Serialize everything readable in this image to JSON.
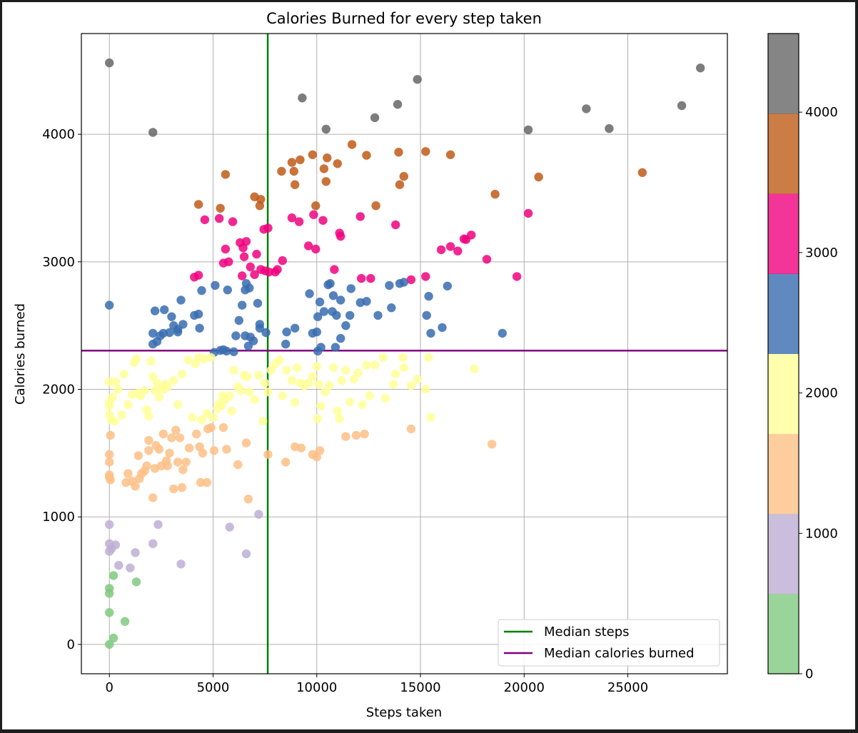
{
  "chart_data": {
    "type": "scatter",
    "title": "Calories Burned for every step taken",
    "xlabel": "Steps taken",
    "ylabel": "Calories burned",
    "xlim": [
      -1350,
      29800
    ],
    "ylim": [
      -230,
      4790
    ],
    "grid": true,
    "x_ticks": [
      0,
      5000,
      10000,
      15000,
      20000,
      25000
    ],
    "y_ticks": [
      0,
      1000,
      2000,
      3000,
      4000
    ],
    "median_steps": 7637,
    "median_calories": 2304,
    "legend": {
      "placement": "lower right",
      "entries": [
        {
          "label": "Median steps",
          "color": "#008000"
        },
        {
          "label": "Median calories burned",
          "color": "#800080"
        }
      ]
    },
    "colorbar": {
      "colormap": "Accent",
      "range": [
        0,
        4560
      ],
      "ticks": [
        0,
        1000,
        2000,
        3000,
        4000
      ],
      "colors": [
        "#7fc97f",
        "#beaed4",
        "#fdc086",
        "#ffff99",
        "#386cb0",
        "#f0027f",
        "#bf5b17",
        "#666666"
      ]
    },
    "points": [
      [
        0,
        4560
      ],
      [
        2100,
        4015
      ],
      [
        9300,
        4285
      ],
      [
        10450,
        4040
      ],
      [
        12800,
        4130
      ],
      [
        13900,
        4235
      ],
      [
        14850,
        4430
      ],
      [
        20200,
        4035
      ],
      [
        23000,
        4200
      ],
      [
        24100,
        4045
      ],
      [
        27600,
        4225
      ],
      [
        28500,
        4520
      ],
      [
        4300,
        3450
      ],
      [
        5600,
        3685
      ],
      [
        7000,
        3510
      ],
      [
        7300,
        3490
      ],
      [
        7250,
        3440
      ],
      [
        8300,
        3710
      ],
      [
        8800,
        3780
      ],
      [
        8900,
        3710
      ],
      [
        8950,
        3605
      ],
      [
        9200,
        3800
      ],
      [
        9800,
        3840
      ],
      [
        9950,
        3440
      ],
      [
        10350,
        3730
      ],
      [
        10450,
        3630
      ],
      [
        10500,
        3815
      ],
      [
        11000,
        3770
      ],
      [
        11700,
        3920
      ],
      [
        12400,
        3835
      ],
      [
        12850,
        3440
      ],
      [
        13950,
        3860
      ],
      [
        14000,
        3605
      ],
      [
        14200,
        3670
      ],
      [
        15250,
        3865
      ],
      [
        16450,
        3840
      ],
      [
        18600,
        3530
      ],
      [
        20700,
        3665
      ],
      [
        25700,
        3700
      ],
      [
        4600,
        3330
      ],
      [
        5350,
        3420
      ],
      [
        5300,
        3340
      ],
      [
        5950,
        3315
      ],
      [
        6300,
        3150
      ],
      [
        6450,
        3110
      ],
      [
        6600,
        3160
      ],
      [
        6500,
        3040
      ],
      [
        6800,
        2960
      ],
      [
        7100,
        3060
      ],
      [
        6400,
        2890
      ],
      [
        7000,
        2900
      ],
      [
        7300,
        2940
      ],
      [
        7500,
        2930
      ],
      [
        7450,
        3255
      ],
      [
        7650,
        3265
      ],
      [
        7700,
        2920
      ],
      [
        8000,
        2920
      ],
      [
        8100,
        2940
      ],
      [
        8350,
        3010
      ],
      [
        8800,
        3345
      ],
      [
        9150,
        3315
      ],
      [
        9600,
        3125
      ],
      [
        9850,
        3370
      ],
      [
        9950,
        3100
      ],
      [
        10300,
        3325
      ],
      [
        10850,
        2940
      ],
      [
        11100,
        3225
      ],
      [
        11150,
        3200
      ],
      [
        12100,
        3355
      ],
      [
        12150,
        2870
      ],
      [
        12600,
        2870
      ],
      [
        13800,
        3290
      ],
      [
        14550,
        2860
      ],
      [
        15250,
        2885
      ],
      [
        16000,
        3095
      ],
      [
        16450,
        3120
      ],
      [
        16800,
        3085
      ],
      [
        17100,
        3180
      ],
      [
        17200,
        3175
      ],
      [
        17450,
        3210
      ],
      [
        18200,
        3020
      ],
      [
        19650,
        2885
      ],
      [
        20200,
        3380
      ],
      [
        4100,
        2880
      ],
      [
        4300,
        2895
      ],
      [
        5500,
        2990
      ],
      [
        5750,
        3000
      ],
      [
        5600,
        3100
      ],
      [
        0,
        2660
      ],
      [
        2100,
        2440
      ],
      [
        2100,
        2355
      ],
      [
        2200,
        2615
      ],
      [
        2300,
        2375
      ],
      [
        2450,
        2420
      ],
      [
        2600,
        2440
      ],
      [
        2650,
        2625
      ],
      [
        2900,
        2445
      ],
      [
        3000,
        2570
      ],
      [
        3100,
        2500
      ],
      [
        3300,
        2450
      ],
      [
        3300,
        2470
      ],
      [
        3450,
        2700
      ],
      [
        3550,
        2510
      ],
      [
        4100,
        2580
      ],
      [
        4300,
        2590
      ],
      [
        4350,
        2480
      ],
      [
        4450,
        2775
      ],
      [
        5050,
        2290
      ],
      [
        5100,
        2815
      ],
      [
        5350,
        2305
      ],
      [
        5500,
        2310
      ],
      [
        5650,
        2300
      ],
      [
        5700,
        2780
      ],
      [
        6000,
        2295
      ],
      [
        6100,
        2420
      ],
      [
        6250,
        2540
      ],
      [
        6400,
        2660
      ],
      [
        6600,
        2830
      ],
      [
        6550,
        2780
      ],
      [
        6550,
        2420
      ],
      [
        6700,
        2340
      ],
      [
        6750,
        2795
      ],
      [
        6800,
        2410
      ],
      [
        6950,
        2380
      ],
      [
        7150,
        2675
      ],
      [
        7250,
        2510
      ],
      [
        7250,
        2480
      ],
      [
        7550,
        2445
      ],
      [
        8500,
        2355
      ],
      [
        8550,
        2450
      ],
      [
        8950,
        2480
      ],
      [
        9650,
        2750
      ],
      [
        9800,
        2440
      ],
      [
        10000,
        2450
      ],
      [
        10050,
        2300
      ],
      [
        10050,
        2570
      ],
      [
        10150,
        2685
      ],
      [
        10200,
        2330
      ],
      [
        10350,
        2610
      ],
      [
        10550,
        2820
      ],
      [
        10650,
        2830
      ],
      [
        10750,
        2610
      ],
      [
        10800,
        2735
      ],
      [
        10900,
        2330
      ],
      [
        10950,
        2580
      ],
      [
        11150,
        2700
      ],
      [
        11150,
        2400
      ],
      [
        11400,
        2500
      ],
      [
        11600,
        2580
      ],
      [
        11650,
        2790
      ],
      [
        12100,
        2680
      ],
      [
        12400,
        2690
      ],
      [
        12950,
        2580
      ],
      [
        13500,
        2815
      ],
      [
        13600,
        2640
      ],
      [
        14000,
        2830
      ],
      [
        14200,
        2840
      ],
      [
        15300,
        2580
      ],
      [
        15400,
        2730
      ],
      [
        15500,
        2440
      ],
      [
        16050,
        2485
      ],
      [
        16300,
        2810
      ],
      [
        18950,
        2440
      ],
      [
        0,
        2060
      ],
      [
        0,
        1900
      ],
      [
        0,
        1870
      ],
      [
        0,
        1800
      ],
      [
        100,
        1760
      ],
      [
        150,
        1940
      ],
      [
        250,
        1750
      ],
      [
        300,
        2060
      ],
      [
        400,
        2000
      ],
      [
        600,
        1800
      ],
      [
        700,
        2120
      ],
      [
        900,
        1880
      ],
      [
        1100,
        1960
      ],
      [
        1200,
        2210
      ],
      [
        1300,
        2240
      ],
      [
        1400,
        1970
      ],
      [
        1500,
        1950
      ],
      [
        1700,
        1990
      ],
      [
        1800,
        1840
      ],
      [
        1900,
        1790
      ],
      [
        2000,
        2220
      ],
      [
        2100,
        2100
      ],
      [
        2200,
        1990
      ],
      [
        2300,
        2050
      ],
      [
        2400,
        1940
      ],
      [
        2500,
        2010
      ],
      [
        2600,
        2000
      ],
      [
        2700,
        2040
      ],
      [
        2800,
        2020
      ],
      [
        3100,
        2070
      ],
      [
        3300,
        1880
      ],
      [
        3500,
        2120
      ],
      [
        3800,
        2230
      ],
      [
        4000,
        1780
      ],
      [
        4150,
        2200
      ],
      [
        4300,
        2250
      ],
      [
        4450,
        1760
      ],
      [
        4550,
        2240
      ],
      [
        4700,
        1810
      ],
      [
        4900,
        2250
      ],
      [
        5000,
        1780
      ],
      [
        5200,
        1850
      ],
      [
        5300,
        1890
      ],
      [
        5400,
        1870
      ],
      [
        5500,
        1700
      ],
      [
        5600,
        1920
      ],
      [
        5800,
        1950
      ],
      [
        5900,
        1830
      ],
      [
        6000,
        2150
      ],
      [
        6200,
        2020
      ],
      [
        6350,
        1990
      ],
      [
        6500,
        2110
      ],
      [
        6650,
        2100
      ],
      [
        6750,
        1980
      ],
      [
        7000,
        1920
      ],
      [
        7200,
        2110
      ],
      [
        7400,
        1750
      ],
      [
        7500,
        2050
      ],
      [
        7650,
        1980
      ],
      [
        7800,
        2150
      ],
      [
        8000,
        2200
      ],
      [
        8200,
        2230
      ],
      [
        8350,
        1950
      ],
      [
        8550,
        2150
      ],
      [
        8800,
        2070
      ],
      [
        8950,
        1900
      ],
      [
        9050,
        2170
      ],
      [
        9200,
        2050
      ],
      [
        9400,
        2030
      ],
      [
        9600,
        2050
      ],
      [
        9800,
        2100
      ],
      [
        10000,
        2180
      ],
      [
        10050,
        1770
      ],
      [
        10100,
        2040
      ],
      [
        10200,
        1870
      ],
      [
        10400,
        1980
      ],
      [
        10600,
        2030
      ],
      [
        10800,
        2170
      ],
      [
        11000,
        1830
      ],
      [
        11100,
        1770
      ],
      [
        11200,
        2070
      ],
      [
        11400,
        2150
      ],
      [
        11600,
        1900
      ],
      [
        11800,
        2080
      ],
      [
        12000,
        2130
      ],
      [
        12200,
        1880
      ],
      [
        12400,
        2190
      ],
      [
        12550,
        1950
      ],
      [
        12800,
        2190
      ],
      [
        13200,
        2250
      ],
      [
        13300,
        1930
      ],
      [
        13700,
        2040
      ],
      [
        13800,
        2120
      ],
      [
        14150,
        2250
      ],
      [
        14200,
        2170
      ],
      [
        14550,
        2030
      ],
      [
        14850,
        2080
      ],
      [
        15250,
        2000
      ],
      [
        15400,
        2250
      ],
      [
        15500,
        1780
      ],
      [
        17600,
        2160
      ],
      [
        50,
        1640
      ],
      [
        0,
        1490
      ],
      [
        0,
        1430
      ],
      [
        0,
        1330
      ],
      [
        0,
        1310
      ],
      [
        50,
        1290
      ],
      [
        800,
        1270
      ],
      [
        900,
        1340
      ],
      [
        1100,
        1280
      ],
      [
        1250,
        1240
      ],
      [
        1400,
        1480
      ],
      [
        1450,
        1300
      ],
      [
        1550,
        1340
      ],
      [
        1700,
        1360
      ],
      [
        1800,
        1400
      ],
      [
        1900,
        1520
      ],
      [
        1900,
        1600
      ],
      [
        2100,
        1150
      ],
      [
        2200,
        1380
      ],
      [
        2250,
        1560
      ],
      [
        2400,
        1530
      ],
      [
        2500,
        1400
      ],
      [
        2600,
        1650
      ],
      [
        2750,
        1440
      ],
      [
        2800,
        1400
      ],
      [
        2900,
        1500
      ],
      [
        3000,
        1620
      ],
      [
        3100,
        1220
      ],
      [
        3200,
        1680
      ],
      [
        3300,
        1430
      ],
      [
        3400,
        1620
      ],
      [
        3500,
        1230
      ],
      [
        3550,
        1370
      ],
      [
        3700,
        1430
      ],
      [
        3850,
        1540
      ],
      [
        4200,
        1650
      ],
      [
        4350,
        1550
      ],
      [
        4400,
        1270
      ],
      [
        4500,
        1500
      ],
      [
        4700,
        1270
      ],
      [
        4750,
        1690
      ],
      [
        4900,
        1700
      ],
      [
        5050,
        1520
      ],
      [
        5450,
        1950
      ],
      [
        5650,
        1530
      ],
      [
        6200,
        1410
      ],
      [
        6600,
        1580
      ],
      [
        7650,
        1490
      ],
      [
        8500,
        1430
      ],
      [
        8950,
        1550
      ],
      [
        9250,
        1540
      ],
      [
        9800,
        1490
      ],
      [
        10000,
        1470
      ],
      [
        10150,
        1520
      ],
      [
        11400,
        1630
      ],
      [
        11900,
        1640
      ],
      [
        12300,
        1650
      ],
      [
        14550,
        1690
      ],
      [
        18450,
        1570
      ],
      [
        0,
        940
      ],
      [
        0,
        790
      ],
      [
        0,
        730
      ],
      [
        100,
        750
      ],
      [
        300,
        780
      ],
      [
        450,
        620
      ],
      [
        1000,
        600
      ],
      [
        1250,
        720
      ],
      [
        2100,
        790
      ],
      [
        2350,
        940
      ],
      [
        3450,
        630
      ],
      [
        5800,
        920
      ],
      [
        6600,
        710
      ],
      [
        6700,
        1140
      ],
      [
        7200,
        1020
      ],
      [
        0,
        440
      ],
      [
        0,
        400
      ],
      [
        0,
        250
      ],
      [
        0,
        0
      ],
      [
        200,
        540
      ],
      [
        200,
        50
      ],
      [
        750,
        180
      ],
      [
        1300,
        490
      ]
    ]
  }
}
